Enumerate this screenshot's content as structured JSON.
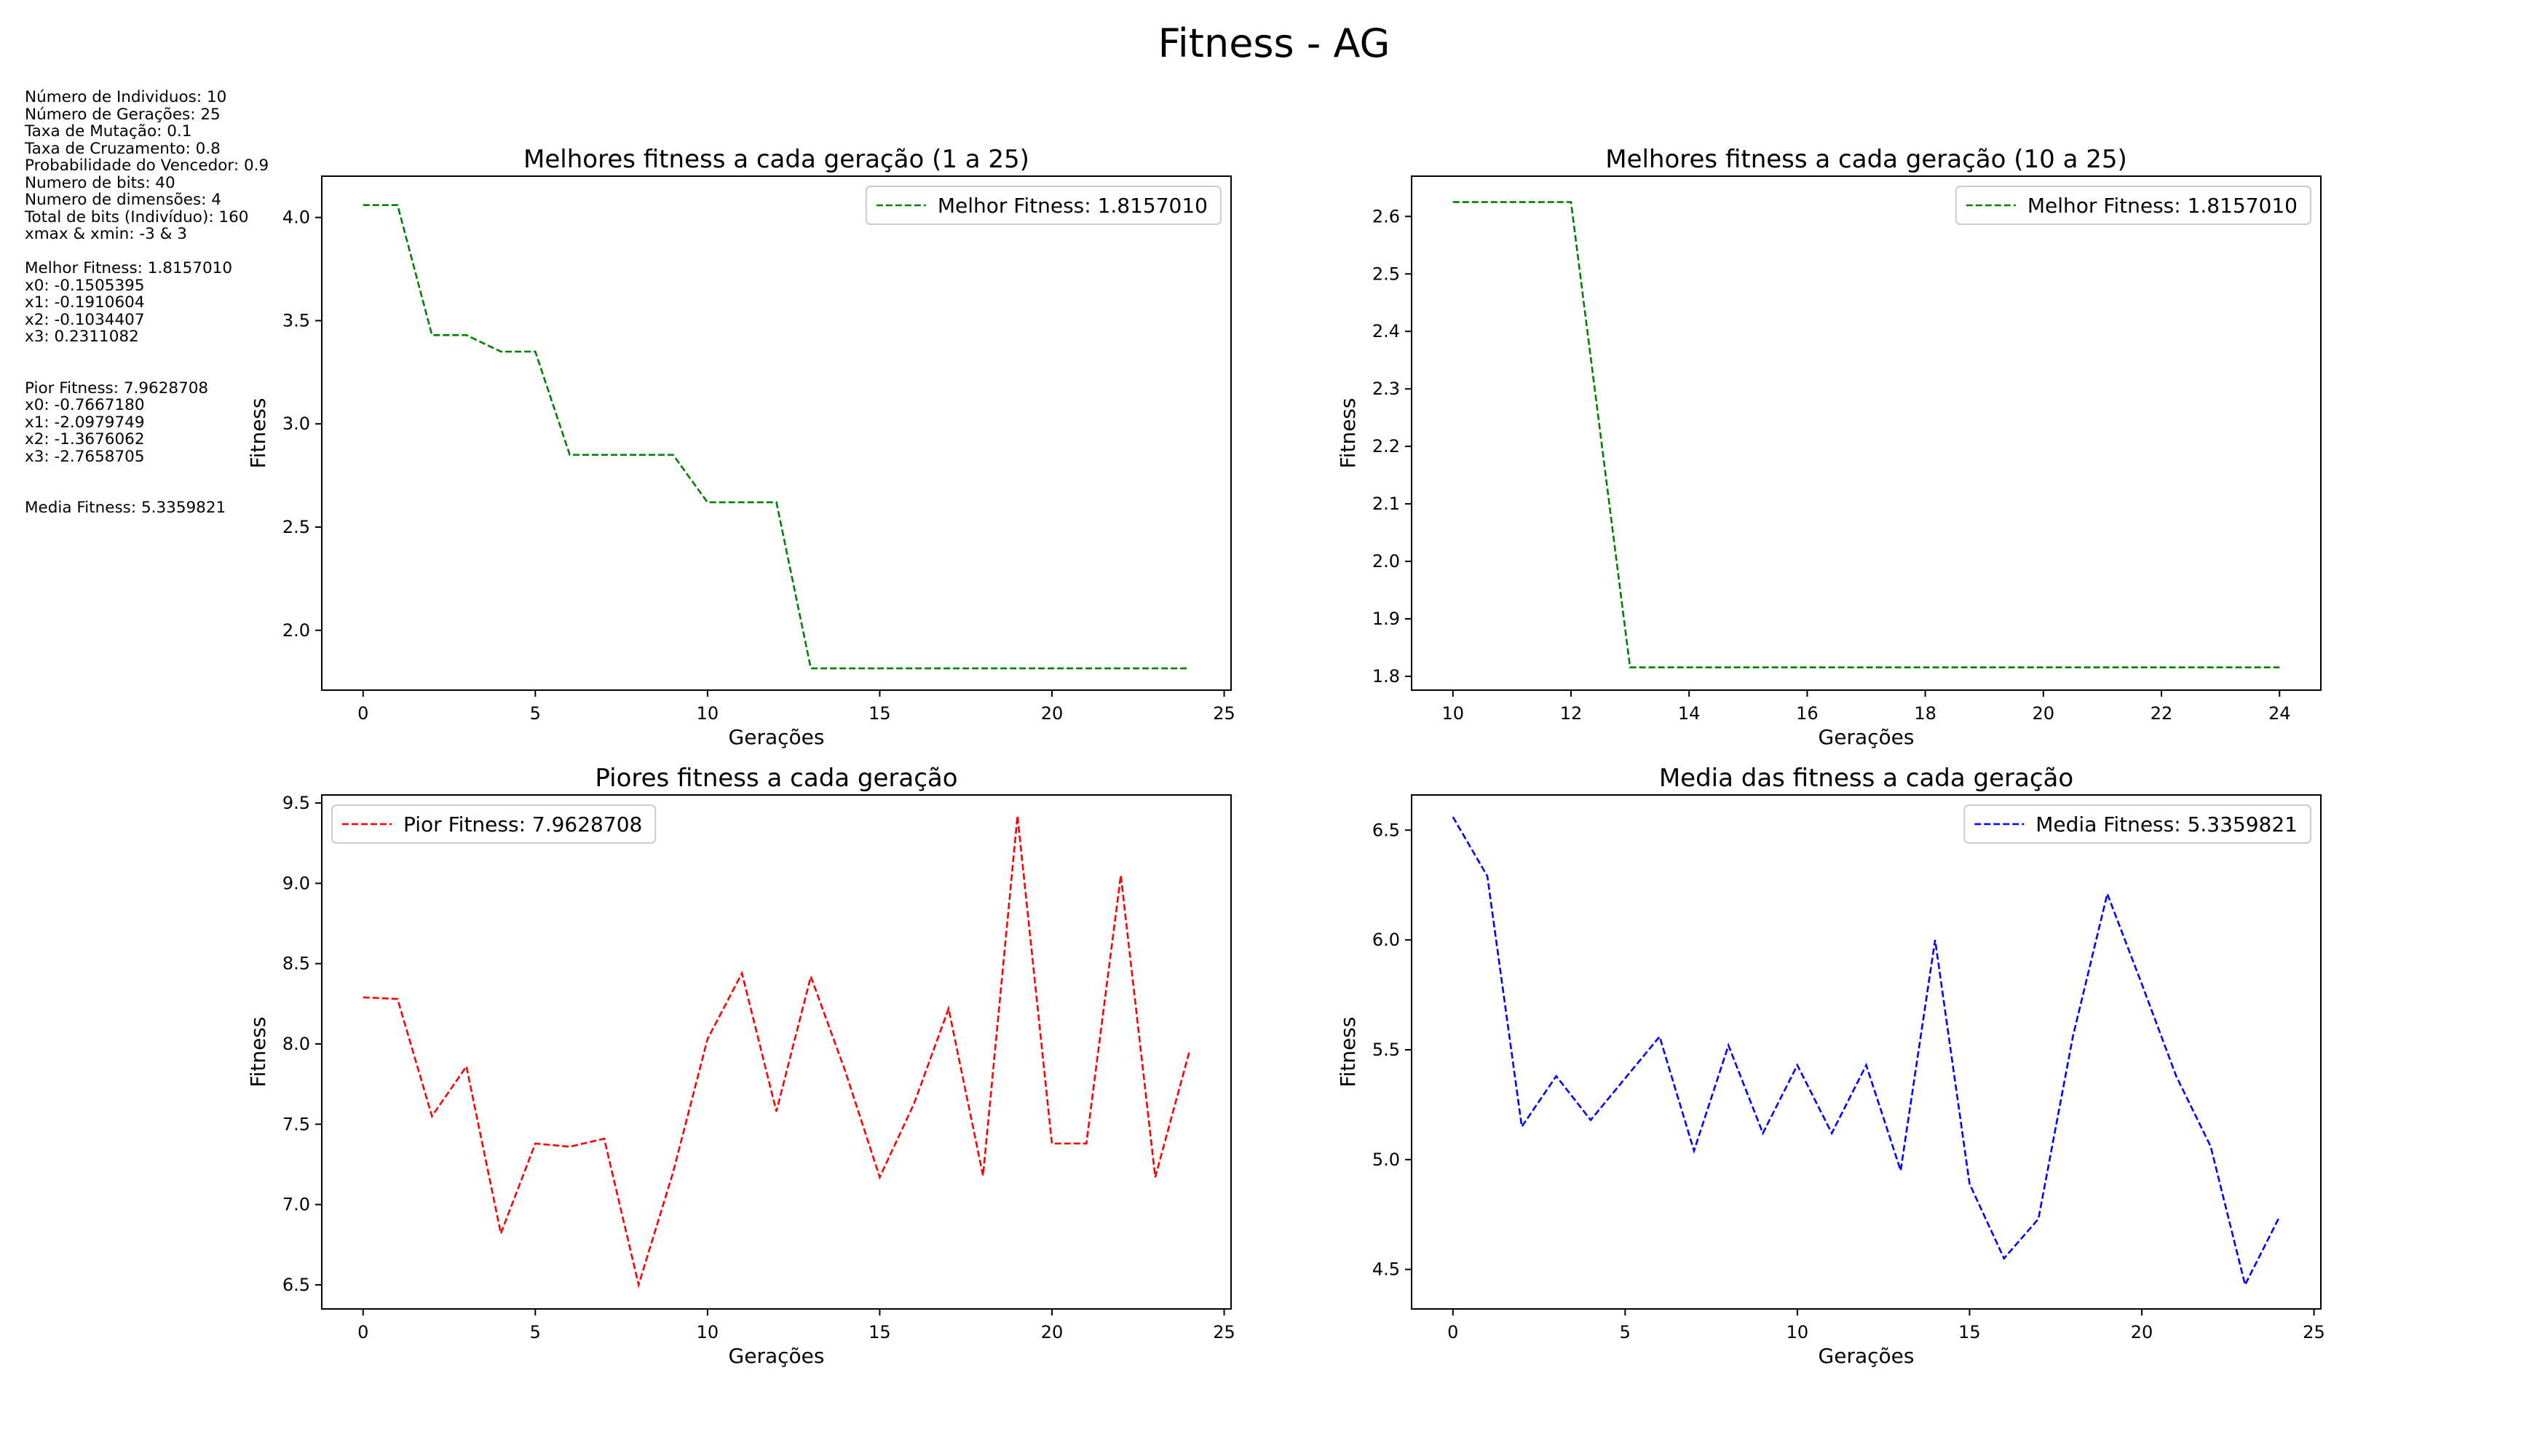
{
  "figure": {
    "title": "Fitness - AG"
  },
  "info": {
    "params": [
      "Número de Individuos: 10",
      "Número de Gerações: 25",
      "Taxa de Mutação: 0.1",
      "Taxa de Cruzamento: 0.8",
      "Probabilidade do Vencedor: 0.9",
      "Numero de bits: 40",
      "Numero de dimensões: 4",
      "Total de bits (Indivíduo): 160",
      "xmax & xmin: -3 & 3"
    ],
    "best": [
      "Melhor Fitness: 1.8157010",
      "x0: -0.1505395",
      "x1: -0.1910604",
      "x2: -0.1034407",
      "x3: 0.2311082"
    ],
    "worst": [
      "Pior Fitness: 7.9628708",
      "x0: -0.7667180",
      "x1: -2.0979749",
      "x2: -1.3676062",
      "x3: -2.7658705"
    ],
    "mean": [
      "Media Fitness: 5.3359821"
    ]
  },
  "chart_data": [
    {
      "type": "line",
      "title": "Melhores fitness a cada geração (1 a 25)",
      "xlabel": "Gerações",
      "ylabel": "Fitness",
      "xlim": [
        -1.2,
        25.2
      ],
      "ylim": [
        1.71,
        4.2
      ],
      "xticks": [
        0,
        5,
        10,
        15,
        20,
        25
      ],
      "yticks": [
        2.0,
        2.5,
        3.0,
        3.5,
        4.0
      ],
      "ytick_decimals": 1,
      "legend_position": "top-right",
      "color": "#008000",
      "series": [
        {
          "name": "Melhor Fitness: 1.8157010",
          "x": [
            0,
            1,
            2,
            3,
            4,
            5,
            6,
            7,
            8,
            9,
            10,
            11,
            12,
            13,
            14,
            15,
            16,
            17,
            18,
            19,
            20,
            21,
            22,
            23,
            24
          ],
          "y": [
            4.06,
            4.06,
            3.43,
            3.43,
            3.35,
            3.35,
            2.85,
            2.85,
            2.85,
            2.85,
            2.62,
            2.62,
            2.62,
            1.8157,
            1.8157,
            1.8157,
            1.8157,
            1.8157,
            1.8157,
            1.8157,
            1.8157,
            1.8157,
            1.8157,
            1.8157,
            1.8157
          ]
        }
      ]
    },
    {
      "type": "line",
      "title": "Melhores fitness a cada geração (10 a 25)",
      "xlabel": "Gerações",
      "ylabel": "Fitness",
      "xlim": [
        9.3,
        24.7
      ],
      "ylim": [
        1.776,
        2.67
      ],
      "xticks": [
        10,
        12,
        14,
        16,
        18,
        20,
        22,
        24
      ],
      "yticks": [
        1.8,
        1.9,
        2.0,
        2.1,
        2.2,
        2.3,
        2.4,
        2.5,
        2.6
      ],
      "ytick_decimals": 1,
      "legend_position": "top-right",
      "color": "#008000",
      "series": [
        {
          "name": "Melhor Fitness: 1.8157010",
          "x": [
            10,
            11,
            12,
            13,
            14,
            15,
            16,
            17,
            18,
            19,
            20,
            21,
            22,
            23,
            24
          ],
          "y": [
            2.625,
            2.625,
            2.625,
            1.8157,
            1.8157,
            1.8157,
            1.8157,
            1.8157,
            1.8157,
            1.8157,
            1.8157,
            1.8157,
            1.8157,
            1.8157,
            1.8157
          ]
        }
      ]
    },
    {
      "type": "line",
      "title": "Piores fitness a cada geração",
      "xlabel": "Gerações",
      "ylabel": "Fitness",
      "xlim": [
        -1.2,
        25.2
      ],
      "ylim": [
        6.35,
        9.55
      ],
      "xticks": [
        0,
        5,
        10,
        15,
        20,
        25
      ],
      "yticks": [
        6.5,
        7.0,
        7.5,
        8.0,
        8.5,
        9.0,
        9.5
      ],
      "ytick_decimals": 1,
      "legend_position": "top-left",
      "color": "#ff0000",
      "series": [
        {
          "name": "Pior Fitness: 7.9628708",
          "x": [
            0,
            1,
            2,
            3,
            4,
            5,
            6,
            7,
            8,
            9,
            10,
            11,
            12,
            13,
            14,
            15,
            16,
            17,
            18,
            19,
            20,
            21,
            22,
            23,
            24
          ],
          "y": [
            8.29,
            8.28,
            7.55,
            7.86,
            6.82,
            7.38,
            7.36,
            7.41,
            6.5,
            7.2,
            8.03,
            8.44,
            7.58,
            8.42,
            7.83,
            7.17,
            7.63,
            8.22,
            7.18,
            9.42,
            7.38,
            7.38,
            9.05,
            7.17,
            7.96
          ]
        }
      ]
    },
    {
      "type": "line",
      "title": "Media das fitness a cada geração",
      "xlabel": "Gerações",
      "ylabel": "Fitness",
      "xlim": [
        -1.2,
        25.2
      ],
      "ylim": [
        4.32,
        6.66
      ],
      "xticks": [
        0,
        5,
        10,
        15,
        20,
        25
      ],
      "yticks": [
        4.5,
        5.0,
        5.5,
        6.0,
        6.5
      ],
      "ytick_decimals": 1,
      "legend_position": "top-right",
      "color": "#0000ff",
      "series": [
        {
          "name": "Media Fitness: 5.3359821",
          "x": [
            0,
            1,
            2,
            3,
            4,
            5,
            6,
            7,
            8,
            9,
            10,
            11,
            12,
            13,
            14,
            15,
            16,
            17,
            18,
            19,
            20,
            21,
            22,
            23,
            24
          ],
          "y": [
            6.56,
            6.29,
            5.15,
            5.38,
            5.18,
            5.37,
            5.56,
            5.04,
            5.52,
            5.12,
            5.43,
            5.12,
            5.43,
            4.95,
            6.0,
            4.89,
            4.55,
            4.73,
            5.56,
            6.21,
            5.8,
            5.38,
            5.06,
            4.43,
            4.74
          ]
        }
      ]
    }
  ]
}
